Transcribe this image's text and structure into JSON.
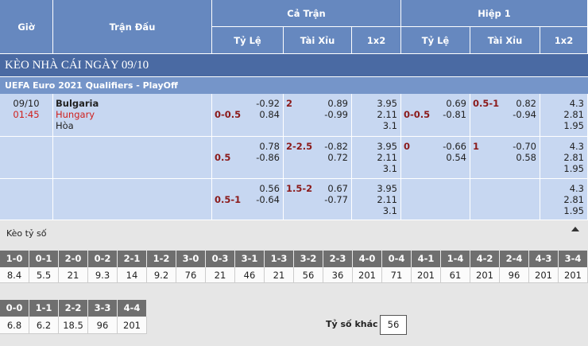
{
  "header": {
    "time": "Giờ",
    "match": "Trận Đấu",
    "full": "Cả Trận",
    "half": "Hiệp 1",
    "sub": [
      "Tỷ Lệ",
      "Tài Xỉu",
      "1x2",
      "Tỷ Lệ",
      "Tài Xỉu",
      "1x2"
    ]
  },
  "day_title": "KÈO NHÀ CÁI NGÀY 09/10",
  "league": "UEFA Euro 2021 Qualifiers - PlayOff",
  "match": {
    "date": "09/10",
    "time": "01:45",
    "home": "Bulgaria",
    "away": "Hungary",
    "draw": "Hòa"
  },
  "rows": [
    {
      "ah": {
        "line": "0-0.5",
        "odds": [
          "-0.92",
          "0.84"
        ]
      },
      "ou": {
        "line": "2",
        "odds": [
          "0.89",
          "-0.99"
        ]
      },
      "x12": [
        "3.95",
        "2.11",
        "3.1"
      ],
      "h1_ah": {
        "line": "0-0.5",
        "odds": [
          "0.69",
          "-0.81"
        ]
      },
      "h1_ou": {
        "line": "0.5-1",
        "odds": [
          "0.82",
          "-0.94"
        ]
      },
      "h1_x12": [
        "4.3",
        "2.81",
        "1.95"
      ]
    },
    {
      "ah": {
        "line": "0.5",
        "odds": [
          "0.78",
          "-0.86"
        ]
      },
      "ou": {
        "line": "2-2.5",
        "odds": [
          "-0.82",
          "0.72"
        ]
      },
      "x12": [
        "3.95",
        "2.11",
        "3.1"
      ],
      "h1_ah": {
        "line": "0",
        "odds": [
          "-0.66",
          "0.54"
        ]
      },
      "h1_ou": {
        "line": "1",
        "odds": [
          "-0.70",
          "0.58"
        ]
      },
      "h1_x12": [
        "4.3",
        "2.81",
        "1.95"
      ]
    },
    {
      "ah": {
        "line": "0.5-1",
        "odds": [
          "0.56",
          "-0.64"
        ]
      },
      "ou": {
        "line": "1.5-2",
        "odds": [
          "0.67",
          "-0.77"
        ]
      },
      "x12": [
        "3.95",
        "2.11",
        "3.1"
      ],
      "h1_x12": [
        "4.3",
        "2.81",
        "1.95"
      ]
    }
  ],
  "correct_score": {
    "title": "Kèo tỷ số",
    "scores": [
      {
        "score": "1-0",
        "odds": "8.4"
      },
      {
        "score": "0-1",
        "odds": "5.5"
      },
      {
        "score": "2-0",
        "odds": "21"
      },
      {
        "score": "0-2",
        "odds": "9.3"
      },
      {
        "score": "2-1",
        "odds": "14"
      },
      {
        "score": "1-2",
        "odds": "9.2"
      },
      {
        "score": "3-0",
        "odds": "76"
      },
      {
        "score": "0-3",
        "odds": "21"
      },
      {
        "score": "3-1",
        "odds": "46"
      },
      {
        "score": "1-3",
        "odds": "21"
      },
      {
        "score": "3-2",
        "odds": "56"
      },
      {
        "score": "2-3",
        "odds": "36"
      },
      {
        "score": "4-0",
        "odds": "201"
      },
      {
        "score": "0-4",
        "odds": "71"
      },
      {
        "score": "4-1",
        "odds": "201"
      },
      {
        "score": "1-4",
        "odds": "61"
      },
      {
        "score": "4-2",
        "odds": "201"
      },
      {
        "score": "2-4",
        "odds": "96"
      },
      {
        "score": "4-3",
        "odds": "201"
      },
      {
        "score": "3-4",
        "odds": "201"
      }
    ],
    "draws": [
      {
        "score": "0-0",
        "odds": "6.8"
      },
      {
        "score": "1-1",
        "odds": "6.2"
      },
      {
        "score": "2-2",
        "odds": "18.5"
      },
      {
        "score": "3-3",
        "odds": "96"
      },
      {
        "score": "4-4",
        "odds": "201"
      }
    ],
    "other_label": "Tỷ số khác",
    "other": "56"
  }
}
